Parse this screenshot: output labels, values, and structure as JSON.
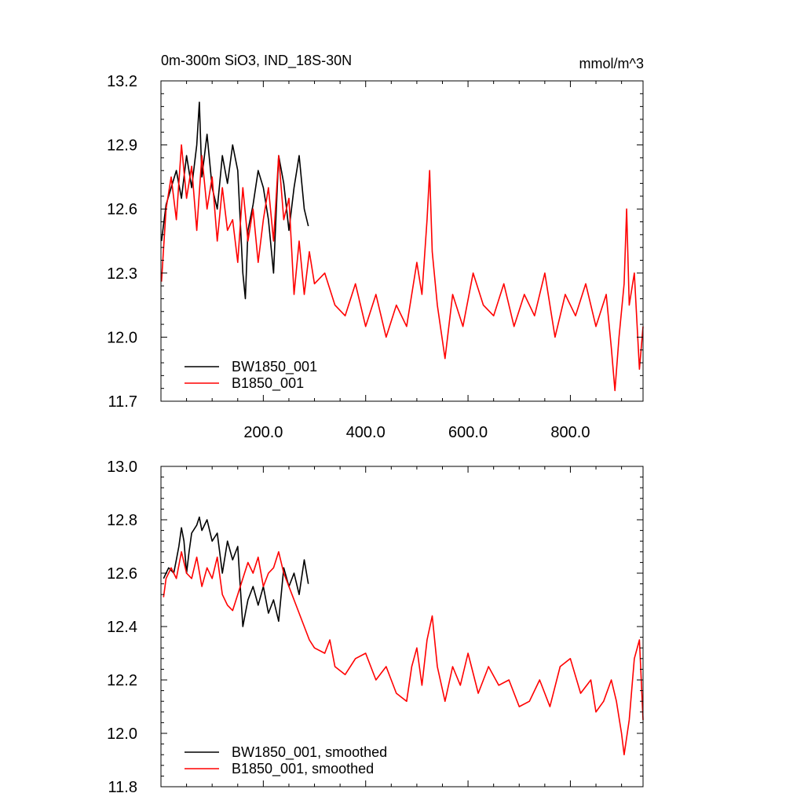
{
  "chart_data": [
    {
      "type": "line",
      "title": "0m-300m SiO3, IND_18S-30N",
      "units": "mmol/m^3",
      "xlim": [
        0,
        942
      ],
      "ylim": [
        11.7,
        13.2
      ],
      "x_ticks": [
        200,
        400,
        600,
        800
      ],
      "x_tick_labels": [
        "200.0",
        "400.0",
        "600.0",
        "800.0"
      ],
      "y_ticks": [
        11.7,
        12.0,
        12.3,
        12.6,
        12.9,
        13.2
      ],
      "y_tick_labels": [
        "11.7",
        "12.0",
        "12.3",
        "12.6",
        "12.9",
        "13.2"
      ],
      "legend_position": "bottom-left",
      "series": [
        {
          "name": "BW1850_001",
          "color": "#000000",
          "x": [
            1,
            10,
            20,
            30,
            40,
            50,
            60,
            70,
            75,
            80,
            90,
            100,
            110,
            120,
            130,
            140,
            150,
            160,
            165,
            170,
            180,
            190,
            200,
            210,
            220,
            230,
            240,
            250,
            260,
            270,
            280,
            288
          ],
          "values": [
            12.45,
            12.62,
            12.7,
            12.78,
            12.65,
            12.85,
            12.7,
            12.9,
            13.1,
            12.75,
            12.95,
            12.7,
            12.6,
            12.85,
            12.72,
            12.9,
            12.78,
            12.3,
            12.18,
            12.5,
            12.62,
            12.78,
            12.7,
            12.55,
            12.3,
            12.85,
            12.72,
            12.5,
            12.7,
            12.85,
            12.6,
            12.52
          ]
        },
        {
          "name": "B1850_001",
          "color": "#ff0000",
          "x": [
            1,
            10,
            20,
            30,
            40,
            50,
            60,
            70,
            80,
            90,
            100,
            110,
            120,
            130,
            140,
            150,
            160,
            170,
            180,
            190,
            200,
            210,
            220,
            230,
            240,
            250,
            260,
            270,
            280,
            290,
            300,
            320,
            340,
            360,
            380,
            400,
            420,
            440,
            460,
            480,
            500,
            510,
            520,
            525,
            530,
            540,
            555,
            570,
            590,
            610,
            630,
            650,
            670,
            690,
            710,
            730,
            750,
            770,
            790,
            810,
            830,
            850,
            870,
            880,
            887,
            895,
            905,
            910,
            915,
            925,
            935,
            942
          ],
          "values": [
            12.26,
            12.6,
            12.75,
            12.55,
            12.9,
            12.65,
            12.8,
            12.5,
            12.85,
            12.6,
            12.75,
            12.45,
            12.7,
            12.5,
            12.55,
            12.35,
            12.7,
            12.45,
            12.6,
            12.35,
            12.55,
            12.7,
            12.45,
            12.85,
            12.55,
            12.65,
            12.2,
            12.45,
            12.2,
            12.4,
            12.25,
            12.3,
            12.15,
            12.1,
            12.25,
            12.05,
            12.2,
            12.0,
            12.15,
            12.05,
            12.35,
            12.2,
            12.55,
            12.78,
            12.4,
            12.15,
            11.9,
            12.2,
            12.05,
            12.3,
            12.15,
            12.1,
            12.25,
            12.05,
            12.2,
            12.1,
            12.3,
            12.0,
            12.2,
            12.1,
            12.25,
            12.05,
            12.2,
            11.95,
            11.75,
            12.0,
            12.25,
            12.6,
            12.15,
            12.3,
            11.85,
            12.05
          ]
        }
      ]
    },
    {
      "type": "line",
      "xlim": [
        0,
        942
      ],
      "ylim": [
        11.8,
        13.0
      ],
      "x_ticks": [
        200,
        400,
        600,
        800
      ],
      "y_ticks": [
        11.8,
        12.0,
        12.2,
        12.4,
        12.6,
        12.8,
        13.0
      ],
      "y_tick_labels": [
        "11.8",
        "12.0",
        "12.2",
        "12.4",
        "12.6",
        "12.8",
        "13.0"
      ],
      "legend_position": "bottom-left",
      "series": [
        {
          "name": "BW1850_001, smoothed",
          "color": "#000000",
          "x": [
            5,
            15,
            25,
            30,
            35,
            40,
            45,
            50,
            55,
            60,
            70,
            75,
            80,
            90,
            100,
            110,
            120,
            130,
            140,
            150,
            155,
            160,
            165,
            170,
            180,
            190,
            200,
            210,
            220,
            230,
            240,
            250,
            260,
            270,
            280,
            288
          ],
          "values": [
            12.58,
            12.62,
            12.6,
            12.65,
            12.7,
            12.77,
            12.72,
            12.6,
            12.68,
            12.75,
            12.78,
            12.81,
            12.76,
            12.8,
            12.72,
            12.75,
            12.6,
            12.72,
            12.65,
            12.7,
            12.55,
            12.4,
            12.45,
            12.5,
            12.55,
            12.48,
            12.55,
            12.45,
            12.5,
            12.42,
            12.62,
            12.55,
            12.6,
            12.52,
            12.65,
            12.56
          ]
        },
        {
          "name": "B1850_001, smoothed",
          "color": "#ff0000",
          "x": [
            5,
            10,
            20,
            30,
            40,
            50,
            60,
            70,
            80,
            90,
            100,
            110,
            120,
            130,
            140,
            150,
            160,
            170,
            180,
            190,
            200,
            210,
            220,
            230,
            240,
            250,
            260,
            270,
            280,
            290,
            300,
            320,
            330,
            340,
            360,
            380,
            400,
            420,
            440,
            460,
            480,
            490,
            500,
            510,
            520,
            530,
            540,
            555,
            570,
            585,
            600,
            620,
            640,
            660,
            680,
            700,
            720,
            740,
            760,
            780,
            800,
            820,
            840,
            850,
            865,
            880,
            890,
            900,
            905,
            915,
            925,
            935,
            942
          ],
          "values": [
            12.51,
            12.58,
            12.62,
            12.58,
            12.68,
            12.6,
            12.58,
            12.66,
            12.55,
            12.62,
            12.58,
            12.66,
            12.52,
            12.48,
            12.46,
            12.52,
            12.58,
            12.64,
            12.6,
            12.66,
            12.55,
            12.6,
            12.62,
            12.68,
            12.6,
            12.55,
            12.5,
            12.45,
            12.4,
            12.35,
            12.32,
            12.3,
            12.35,
            12.25,
            12.22,
            12.28,
            12.3,
            12.2,
            12.25,
            12.15,
            12.12,
            12.25,
            12.32,
            12.18,
            12.35,
            12.44,
            12.25,
            12.12,
            12.25,
            12.18,
            12.3,
            12.15,
            12.25,
            12.18,
            12.2,
            12.1,
            12.12,
            12.2,
            12.1,
            12.25,
            12.28,
            12.15,
            12.2,
            12.08,
            12.12,
            12.2,
            12.12,
            12.0,
            11.92,
            12.05,
            12.28,
            12.35,
            12.05
          ]
        }
      ]
    }
  ]
}
